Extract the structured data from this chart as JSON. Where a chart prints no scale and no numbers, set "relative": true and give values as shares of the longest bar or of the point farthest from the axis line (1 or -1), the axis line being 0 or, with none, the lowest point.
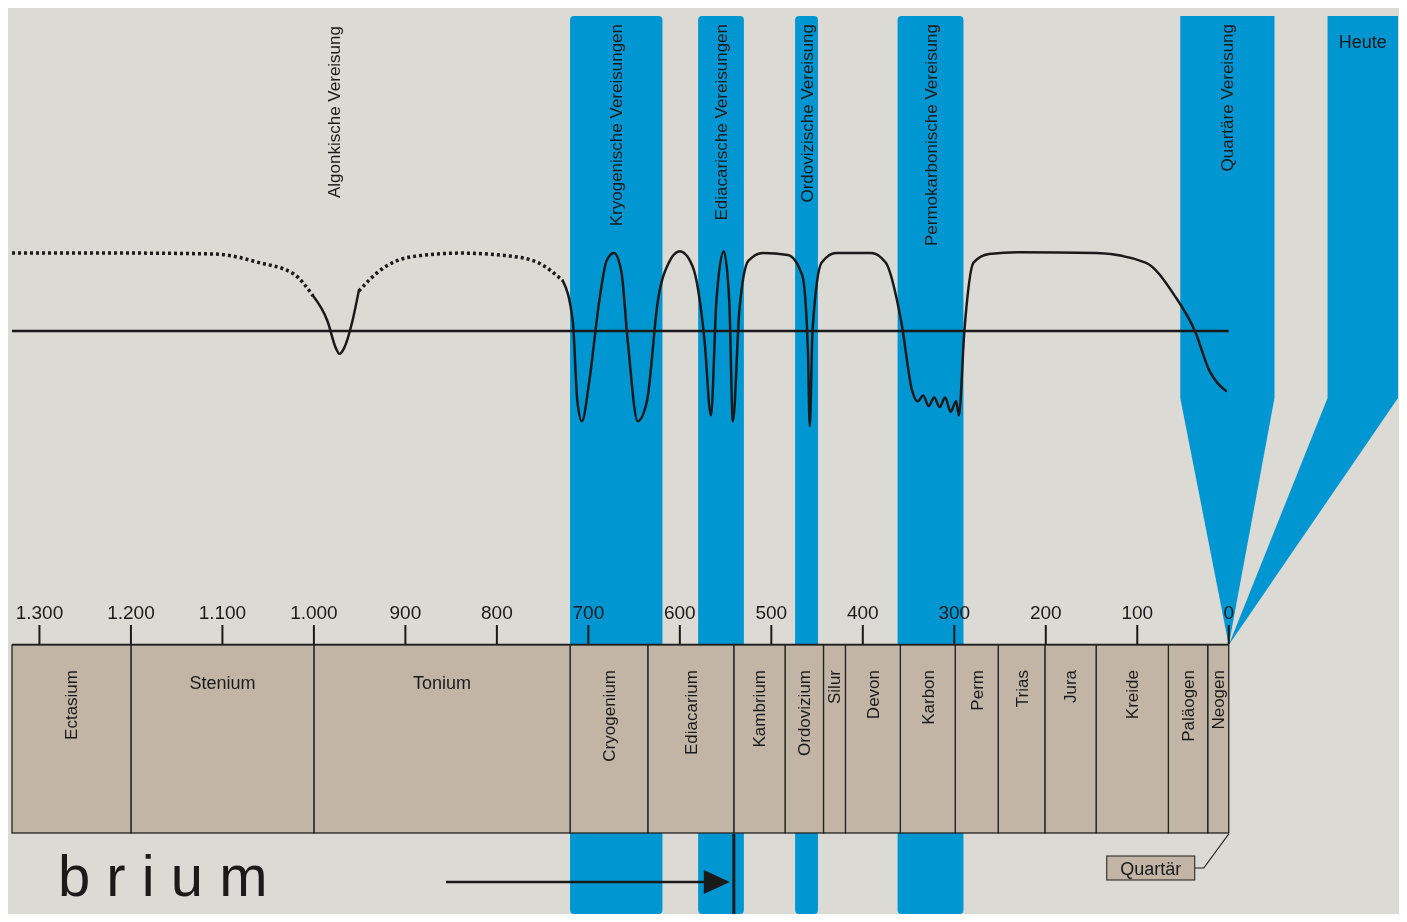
{
  "chart_data": [
    {
      "type": "line",
      "relative": true,
      "xlim": [
        1330,
        -185
      ],
      "xticks": [
        {
          "value": 1300,
          "label": "1.300"
        },
        {
          "value": 1200,
          "label": "1.200"
        },
        {
          "value": 1100,
          "label": "1.100"
        },
        {
          "value": 1000,
          "label": "1.000"
        },
        900,
        800,
        700,
        600,
        500,
        400,
        300,
        200,
        100,
        0
      ],
      "series": [
        {
          "color": "#1a1a1a",
          "line_style": "dotted",
          "x": [
            1330,
            1200,
            1108,
            1060,
            1022,
            1001
          ],
          "values": [
            0.82,
            0.82,
            0.81,
            0.72,
            0.6,
            0.37
          ]
        },
        {
          "color": "#1a1a1a",
          "line_style": "solid",
          "x": [
            1001,
            985,
            976,
            972,
            967,
            958,
            951
          ],
          "values": [
            0.37,
            0.1,
            -0.18,
            -0.24,
            -0.18,
            0.1,
            0.42
          ]
        },
        {
          "color": "#1a1a1a",
          "line_style": "dotted",
          "x": [
            951,
            926,
            894,
            840,
            787,
            755,
            728
          ],
          "values": [
            0.42,
            0.65,
            0.78,
            0.82,
            0.79,
            0.72,
            0.53
          ]
        },
        {
          "color": "#1a1a1a",
          "line_style": "solid",
          "x": [
            728,
            717,
            712,
            707,
            699,
            688,
            680,
            672,
            664,
            657,
            646,
            636,
            624,
            612,
            600,
            586,
            573,
            566,
            560,
            552,
            546,
            542,
            535,
            525,
            509,
            482,
            466,
            460,
            458,
            455,
            445,
            429,
            391,
            375,
            358,
            346,
            340,
            334,
            328,
            322,
            316,
            310,
            304,
            298,
            295,
            289,
            279,
            262,
            230,
            145,
            91,
            59,
            37,
            21,
            3
          ],
          "values": [
            0.53,
            0.1,
            -0.74,
            -0.95,
            -0.53,
            0.32,
            0.74,
            0.82,
            0.63,
            -0.1,
            -0.95,
            -0.74,
            0.32,
            0.72,
            0.84,
            0.68,
            -0.1,
            -0.89,
            0.32,
            0.84,
            0.32,
            -0.95,
            0.21,
            0.74,
            0.82,
            0.8,
            0.58,
            -0.21,
            -1,
            0,
            0.72,
            0.82,
            0.82,
            0.72,
            0.1,
            -0.63,
            -0.74,
            -0.68,
            -0.79,
            -0.7,
            -0.8,
            -0.7,
            -0.85,
            -0.74,
            -0.89,
            0,
            0.72,
            0.81,
            0.83,
            0.82,
            0.72,
            0.37,
            0,
            -0.42,
            -0.63
          ]
        }
      ],
      "bands": [
        {
          "axis": "x",
          "from": 720,
          "to": 619,
          "label": "Kryogenische Vereisungen",
          "color": "#0096d2"
        },
        {
          "axis": "x",
          "from": 580,
          "to": 530,
          "label": "Ediacarische Vereisungen",
          "color": "#0096d2"
        },
        {
          "axis": "x",
          "from": 474,
          "to": 449,
          "label": "Ordovizische Vereisung",
          "color": "#0096d2"
        },
        {
          "axis": "x",
          "from": 362,
          "to": 290,
          "label": "Permokarbonische Vereisung",
          "color": "#0096d2"
        },
        {
          "axis": "x",
          "from": 53,
          "to": -50,
          "label": "Quartäre Vereisung",
          "color": "#0096d2"
        },
        {
          "axis": "x",
          "from": -108,
          "to": -185,
          "label": "Heute",
          "color": "#0096d2"
        }
      ],
      "annotations": [
        "Algonkische Vereisung"
      ]
    },
    {
      "type": "bar",
      "orientation": "horizontal",
      "stacked": true,
      "xlim": [
        1330,
        -185
      ],
      "tick_labels": false,
      "categories": [
        null
      ],
      "series": [
        {
          "name": "Neogen",
          "color": "#c3b5a6",
          "values": [
            23
          ]
        },
        {
          "name": "Paläogen",
          "color": "#c3b5a6",
          "values": [
            43
          ]
        },
        {
          "name": "Kreide",
          "color": "#c3b5a6",
          "values": [
            79
          ]
        },
        {
          "name": "Jura",
          "color": "#c3b5a6",
          "values": [
            56
          ]
        },
        {
          "name": "Trias",
          "color": "#c3b5a6",
          "values": [
            51
          ]
        },
        {
          "name": "Perm",
          "color": "#c3b5a6",
          "values": [
            47
          ]
        },
        {
          "name": "Karbon",
          "color": "#c3b5a6",
          "values": [
            60
          ]
        },
        {
          "name": "Devon",
          "color": "#c3b5a6",
          "values": [
            60
          ]
        },
        {
          "name": "Silur",
          "color": "#c3b5a6",
          "values": [
            24
          ]
        },
        {
          "name": "Ordovizium",
          "color": "#c3b5a6",
          "values": [
            42
          ]
        },
        {
          "name": "Kambrium",
          "color": "#c3b5a6",
          "values": [
            56
          ]
        },
        {
          "name": "Ediacarium",
          "color": "#c3b5a6",
          "values": [
            94
          ]
        },
        {
          "name": "Cryogenium",
          "color": "#c3b5a6",
          "values": [
            85
          ]
        },
        {
          "name": "Tonium",
          "color": "#c3b5a6",
          "values": [
            280
          ]
        },
        {
          "name": "Stenium",
          "color": "#c3b5a6",
          "values": [
            200
          ]
        },
        {
          "name": "Ectasium",
          "color": "#c3b5a6",
          "values": [
            130
          ]
        }
      ],
      "annotations": [
        "b r i u m",
        "Quartär"
      ]
    }
  ]
}
